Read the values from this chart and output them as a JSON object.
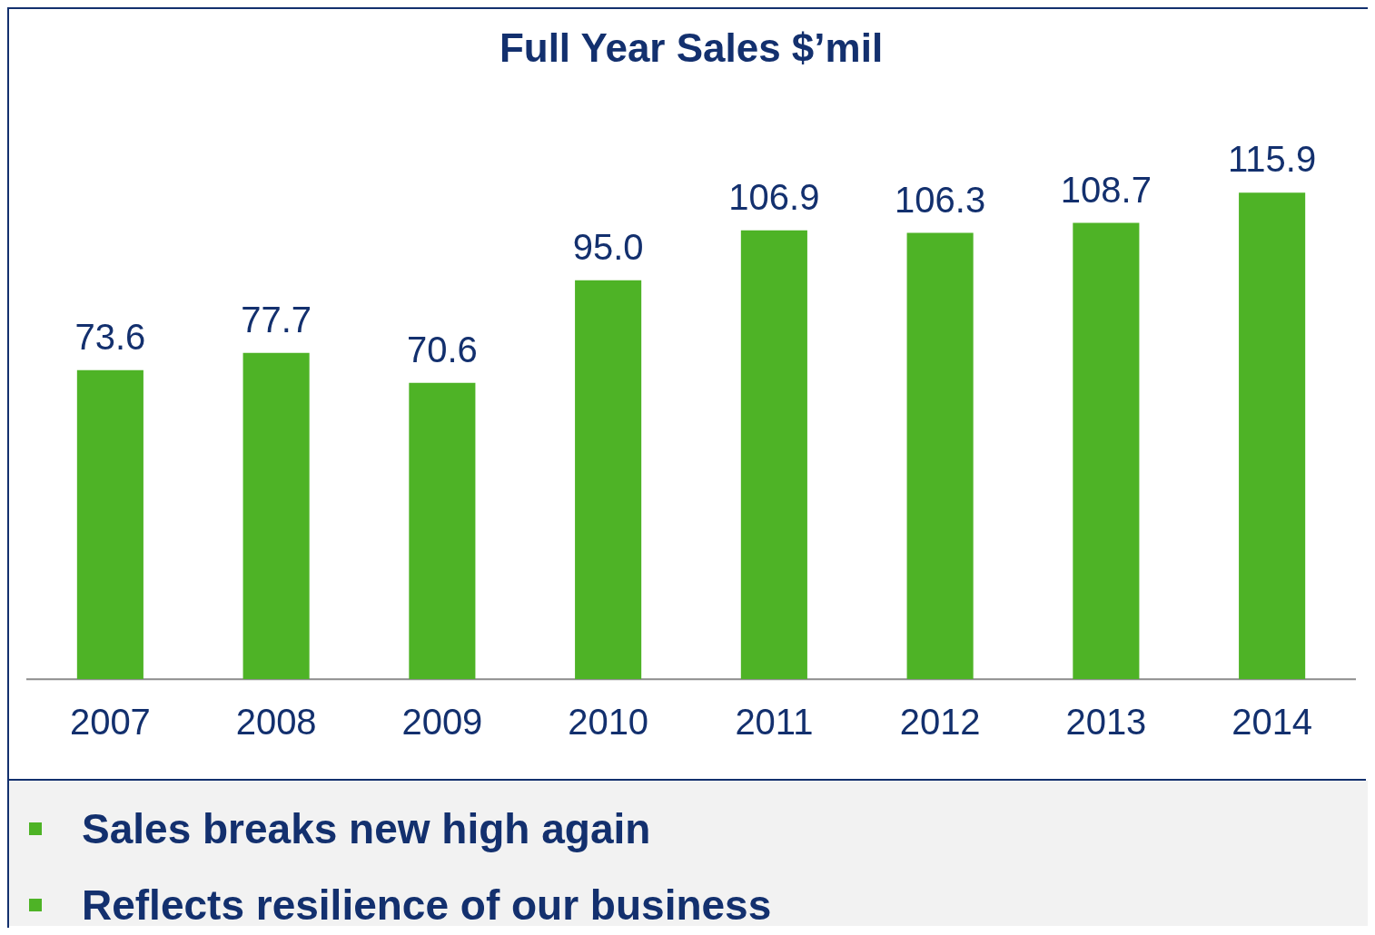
{
  "chart_data": {
    "type": "bar",
    "title": "Full Year Sales $’mil",
    "categories": [
      "2007",
      "2008",
      "2009",
      "2010",
      "2011",
      "2012",
      "2013",
      "2014"
    ],
    "values": [
      73.6,
      77.7,
      70.6,
      95.0,
      106.9,
      106.3,
      108.7,
      115.9
    ],
    "value_labels": [
      "73.6",
      "77.7",
      "70.6",
      "95.0",
      "106.9",
      "106.3",
      "108.7",
      "115.9"
    ],
    "color": "#4eb326",
    "grid": false,
    "legend": false,
    "annotations": [
      "Sales breaks new high again",
      "Reflects resilience of our business"
    ]
  }
}
